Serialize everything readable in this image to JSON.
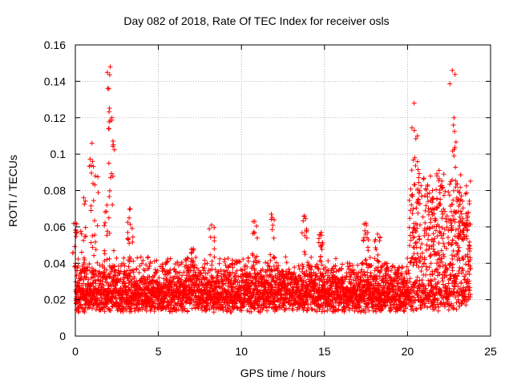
{
  "chart_data": {
    "type": "scatter",
    "title": "Day 082 of 2018, Rate Of TEC Index for receiver osls",
    "xlabel": "GPS time / hours",
    "ylabel": "ROTI / TECUs",
    "xlim": [
      0,
      25
    ],
    "ylim": [
      0,
      0.16
    ],
    "xticks": [
      0,
      5,
      10,
      15,
      20,
      25
    ],
    "xtick_labels": [
      "0",
      "5",
      "10",
      "15",
      "20",
      "25"
    ],
    "yticks": [
      0,
      0.02,
      0.04,
      0.06,
      0.08,
      0.1,
      0.12,
      0.14,
      0.16
    ],
    "ytick_labels": [
      "0",
      "0.02",
      "0.04",
      "0.06",
      "0.08",
      "0.1",
      "0.12",
      "0.14",
      "0.16"
    ],
    "grid": true,
    "marker": "+",
    "marker_color": "#ff0000",
    "series": [
      {
        "name": "ROTI",
        "x_range": [
          0,
          23.8
        ],
        "typical_range": [
          0.005,
          0.04
        ],
        "peaks": [
          {
            "x": 0.0,
            "y": 0.062
          },
          {
            "x": 0.5,
            "y": 0.076
          },
          {
            "x": 1.0,
            "y": 0.106
          },
          {
            "x": 1.2,
            "y": 0.088
          },
          {
            "x": 1.9,
            "y": 0.072
          },
          {
            "x": 2.1,
            "y": 0.148
          },
          {
            "x": 2.2,
            "y": 0.12
          },
          {
            "x": 3.3,
            "y": 0.07
          },
          {
            "x": 7.1,
            "y": 0.048
          },
          {
            "x": 8.2,
            "y": 0.061
          },
          {
            "x": 10.8,
            "y": 0.063
          },
          {
            "x": 11.8,
            "y": 0.067
          },
          {
            "x": 13.8,
            "y": 0.066
          },
          {
            "x": 14.8,
            "y": 0.057
          },
          {
            "x": 17.5,
            "y": 0.062
          },
          {
            "x": 18.2,
            "y": 0.056
          },
          {
            "x": 20.4,
            "y": 0.128
          },
          {
            "x": 20.6,
            "y": 0.11
          },
          {
            "x": 21.5,
            "y": 0.08
          },
          {
            "x": 21.9,
            "y": 0.091
          },
          {
            "x": 22.7,
            "y": 0.146
          },
          {
            "x": 22.8,
            "y": 0.12
          },
          {
            "x": 23.2,
            "y": 0.075
          },
          {
            "x": 23.6,
            "y": 0.065
          }
        ]
      }
    ]
  }
}
